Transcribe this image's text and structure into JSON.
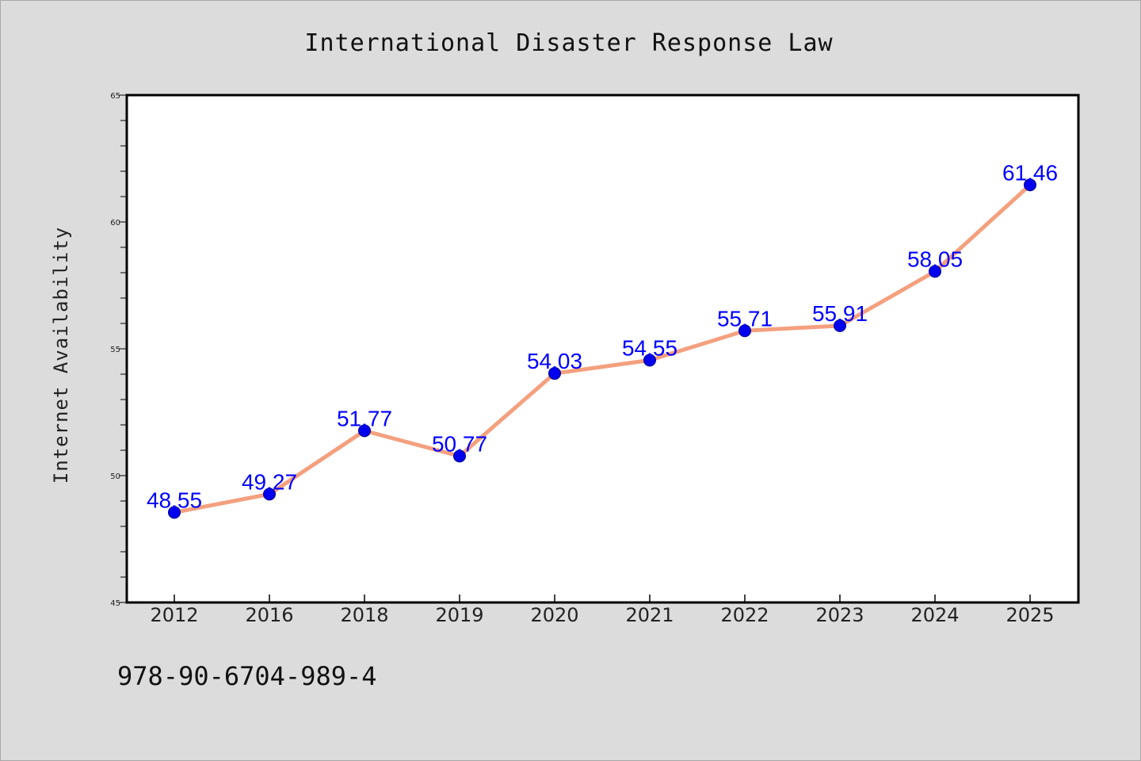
{
  "chart_data": {
    "type": "line",
    "title": "International Disaster Response Law",
    "xlabel": "",
    "ylabel": "Internet Availability",
    "categories": [
      "2012",
      "2016",
      "2018",
      "2019",
      "2020",
      "2021",
      "2022",
      "2023",
      "2024",
      "2025"
    ],
    "series": [
      {
        "values": [
          48.55,
          49.27,
          51.77,
          50.77,
          54.03,
          54.55,
          55.71,
          55.91,
          58.05,
          61.46
        ],
        "labels": [
          "48.55",
          "49.27",
          "51.77",
          "50.77",
          "54.03",
          "54.55",
          "55.71",
          "55.91",
          "58.05",
          "61.46"
        ],
        "line_color": "#f4a07e",
        "marker_color": "#0000ee"
      }
    ],
    "ylim": [
      45,
      65
    ],
    "yticks": [
      "45",
      "50",
      "55",
      "60",
      "65"
    ],
    "grid": false,
    "label_color": "#0000ff"
  },
  "footer": {
    "identifier": "978-90-6704-989-4"
  },
  "colors": {
    "background": "#dcdcdc",
    "plot_background": "#ffffff"
  }
}
